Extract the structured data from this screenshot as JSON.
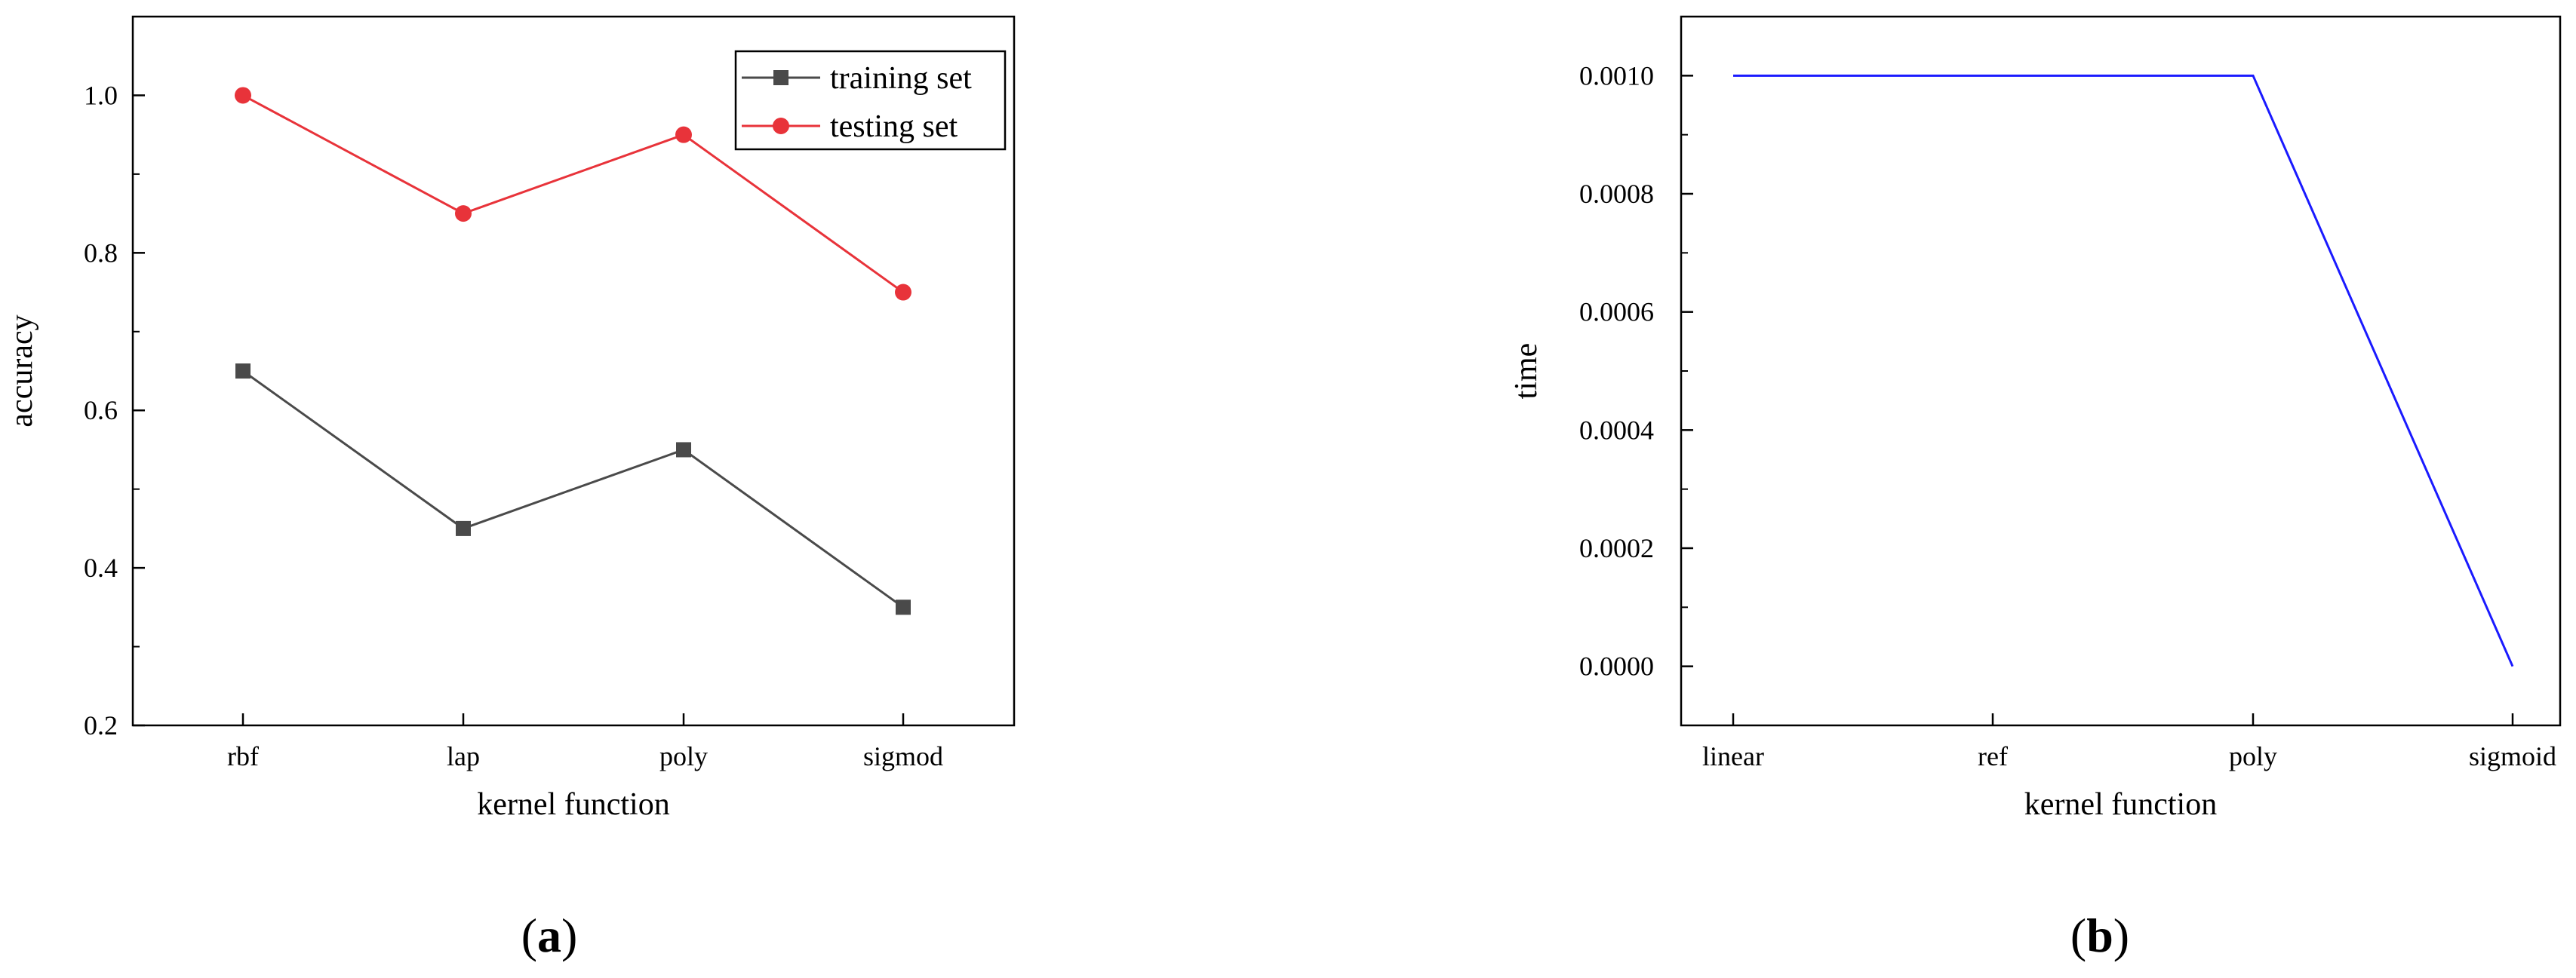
{
  "chart_data": [
    {
      "type": "line",
      "title": "",
      "xlabel": "kernel function",
      "ylabel": "accuracy",
      "categories": [
        "rbf",
        "lap",
        "poly",
        "sigmod"
      ],
      "ylim": [
        0.2,
        1.1
      ],
      "yticks": [
        "0.2",
        "0.4",
        "0.6",
        "0.8",
        "1.0"
      ],
      "legend": "top-right",
      "grid": false,
      "panel_label": "a",
      "series": [
        {
          "name": "training set",
          "values": [
            0.65,
            0.45,
            0.55,
            0.35
          ],
          "color": "#4a4a4a",
          "marker": "square"
        },
        {
          "name": "testing set",
          "values": [
            1.0,
            0.85,
            0.95,
            0.75
          ],
          "color": "#e8333a",
          "marker": "circle"
        }
      ]
    },
    {
      "type": "line",
      "title": "",
      "xlabel": "kernel function",
      "ylabel": "time",
      "categories": [
        "linear",
        "ref",
        "poly",
        "sigmoid"
      ],
      "ylim": [
        -0.0001,
        0.0011
      ],
      "yticks": [
        "0.0000",
        "0.0002",
        "0.0004",
        "0.0006",
        "0.0008",
        "0.0010"
      ],
      "grid": false,
      "panel_label": "b",
      "series": [
        {
          "values": [
            0.001,
            0.001,
            0.001,
            0.0
          ],
          "color": "#1a1aff",
          "marker": "none"
        }
      ]
    }
  ]
}
